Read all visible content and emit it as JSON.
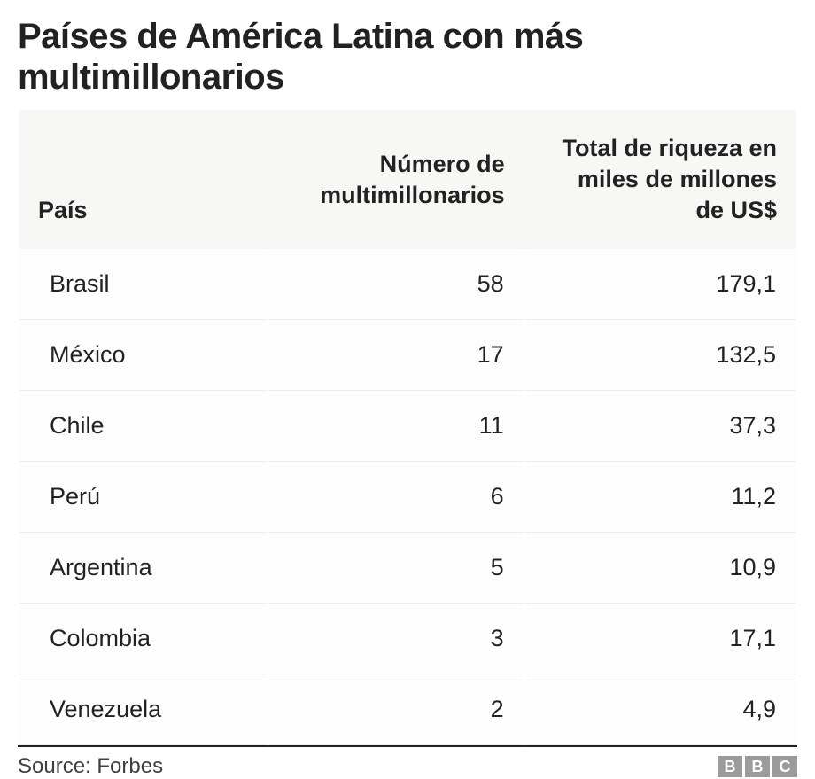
{
  "title": "Países de América Latina con más multimillonarios",
  "table": {
    "type": "table",
    "columns": [
      {
        "key": "country",
        "label": "País",
        "align": "left",
        "width_pct": 32
      },
      {
        "key": "count",
        "label": "Número de multimillonarios",
        "align": "right",
        "width_pct": 33
      },
      {
        "key": "wealth",
        "label": "Total de riqueza en miles de millones de US$",
        "align": "right",
        "width_pct": 35
      }
    ],
    "rows": [
      {
        "country": "Brasil",
        "count": "58",
        "wealth": "179,1"
      },
      {
        "country": "México",
        "count": "17",
        "wealth": "132,5"
      },
      {
        "country": "Chile",
        "count": "11",
        "wealth": "37,3"
      },
      {
        "country": "Perú",
        "count": "6",
        "wealth": "11,2"
      },
      {
        "country": "Argentina",
        "count": "5",
        "wealth": "10,9"
      },
      {
        "country": "Colombia",
        "count": "3",
        "wealth": "17,1"
      },
      {
        "country": "Venezuela",
        "count": "2",
        "wealth": "4,9"
      }
    ],
    "header_bg": "#f7f7f5",
    "row_border_color": "#ececec",
    "header_fontsize_pt": 20,
    "cell_fontsize_pt": 20,
    "header_fontweight": 700,
    "cell_fontweight": 400
  },
  "footer": {
    "source_label": "Source: Forbes",
    "logo_letters": [
      "B",
      "B",
      "C"
    ],
    "logo_bg": "#9b9b9b",
    "logo_fg": "#ffffff",
    "border_top_color": "#222222"
  },
  "styling": {
    "background_color": "#ffffff",
    "title_color": "#222222",
    "title_fontsize_pt": 30,
    "title_fontweight": 700,
    "text_color": "#222222",
    "source_color": "#404040",
    "font_family": "Helvetica, Arial, sans-serif"
  }
}
